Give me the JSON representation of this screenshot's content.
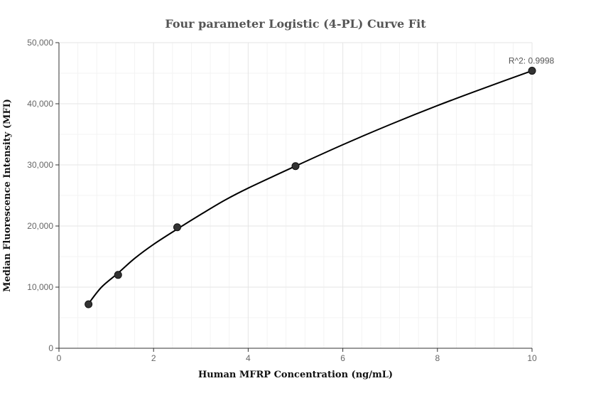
{
  "chart_data": {
    "type": "scatter",
    "title": "Four parameter Logistic (4-PL) Curve Fit",
    "xlabel": "Human MFRP Concentration (ng/mL)",
    "ylabel": "Median Fluorescence Intensity (MFI)",
    "xlim": [
      0,
      10
    ],
    "ylim": [
      0,
      50000
    ],
    "x_ticks": [
      0,
      2,
      4,
      6,
      8,
      10
    ],
    "x_tick_labels": [
      "0",
      "2",
      "4",
      "6",
      "8",
      "10"
    ],
    "y_ticks": [
      0,
      10000,
      20000,
      30000,
      40000,
      50000
    ],
    "y_tick_labels": [
      "0",
      "10,000",
      "20,000",
      "30,000",
      "40,000",
      "50,000"
    ],
    "grid": true,
    "points": [
      {
        "x": 0.625,
        "y": 7200
      },
      {
        "x": 1.25,
        "y": 12000
      },
      {
        "x": 2.5,
        "y": 19800
      },
      {
        "x": 5,
        "y": 29800
      },
      {
        "x": 10,
        "y": 45400
      }
    ],
    "fit_curve": [
      {
        "x": 0.625,
        "y": 7300
      },
      {
        "x": 0.9,
        "y": 10000
      },
      {
        "x": 1.25,
        "y": 12300
      },
      {
        "x": 1.6,
        "y": 14700
      },
      {
        "x": 2.0,
        "y": 17000
      },
      {
        "x": 2.5,
        "y": 19500
      },
      {
        "x": 3.0,
        "y": 21900
      },
      {
        "x": 3.5,
        "y": 24200
      },
      {
        "x": 4.0,
        "y": 26200
      },
      {
        "x": 5.0,
        "y": 29800
      },
      {
        "x": 6.0,
        "y": 33300
      },
      {
        "x": 7.0,
        "y": 36600
      },
      {
        "x": 8.0,
        "y": 39700
      },
      {
        "x": 9.0,
        "y": 42600
      },
      {
        "x": 10.0,
        "y": 45400
      }
    ],
    "annotation": "R^2: 0.9998",
    "colors": {
      "points": "#333333",
      "line": "#000000",
      "grid": "#e6e6e6"
    }
  }
}
